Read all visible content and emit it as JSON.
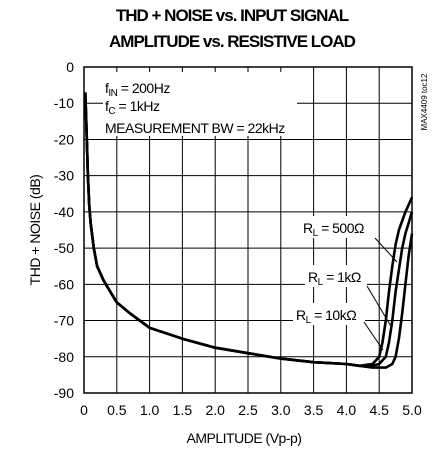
{
  "chart_data": {
    "type": "line",
    "title_lines": [
      "THD + NOISE vs. INPUT SIGNAL",
      "AMPLITUDE vs. RESISTIVE LOAD"
    ],
    "xlabel": "AMPLITUDE (Vp-p)",
    "ylabel": "THD + NOISE (dB)",
    "xlim": [
      0,
      5.0
    ],
    "ylim": [
      -90,
      0
    ],
    "xticks": [
      "0",
      "0.5",
      "1.0",
      "1.5",
      "2.0",
      "2.5",
      "3.0",
      "3.5",
      "4.0",
      "4.5",
      "5.0"
    ],
    "yticks": [
      "0",
      "-10",
      "-20",
      "-30",
      "-40",
      "-50",
      "-60",
      "-70",
      "-80",
      "-90"
    ],
    "grid": true,
    "annotations": {
      "fin": "fIN = 200Hz",
      "fc": "fC = 1kHz",
      "bw": "MEASUREMENT BW = 22kHz"
    },
    "code": "MAX4409 toc12",
    "series": [
      {
        "name": "RL = 500Ω",
        "x": [
          0.02,
          0.04,
          0.06,
          0.08,
          0.1,
          0.15,
          0.2,
          0.3,
          0.4,
          0.5,
          0.7,
          1.0,
          1.5,
          2.0,
          2.5,
          3.0,
          3.5,
          4.0,
          4.2,
          4.4,
          4.5,
          4.55,
          4.6,
          4.65,
          4.7,
          4.75,
          4.8,
          4.9,
          5.0
        ],
        "y": [
          -7,
          -18,
          -30,
          -38,
          -43,
          -50,
          -55,
          -59,
          -62,
          -65,
          -68,
          -72,
          -75,
          -77.5,
          -79,
          -80.5,
          -81.5,
          -82,
          -82.5,
          -82,
          -80,
          -76,
          -70,
          -62,
          -55,
          -49,
          -45,
          -40,
          -36
        ]
      },
      {
        "name": "RL = 1kΩ",
        "x": [
          0.02,
          0.04,
          0.06,
          0.08,
          0.1,
          0.15,
          0.2,
          0.3,
          0.4,
          0.5,
          0.7,
          1.0,
          1.5,
          2.0,
          2.5,
          3.0,
          3.5,
          4.0,
          4.2,
          4.4,
          4.5,
          4.6,
          4.65,
          4.7,
          4.75,
          4.8,
          4.85,
          4.9,
          5.0
        ],
        "y": [
          -7,
          -18,
          -30,
          -38,
          -43,
          -50,
          -55,
          -59,
          -62,
          -65,
          -68,
          -72,
          -75,
          -77.5,
          -79,
          -80.5,
          -81.5,
          -82,
          -82.5,
          -82.5,
          -82,
          -80,
          -76,
          -70,
          -62,
          -56,
          -50,
          -46,
          -40
        ]
      },
      {
        "name": "RL = 10kΩ",
        "x": [
          0.02,
          0.04,
          0.06,
          0.08,
          0.1,
          0.15,
          0.2,
          0.3,
          0.4,
          0.5,
          0.7,
          1.0,
          1.5,
          2.0,
          2.5,
          3.0,
          3.5,
          4.0,
          4.2,
          4.4,
          4.5,
          4.6,
          4.7,
          4.75,
          4.8,
          4.85,
          4.9,
          4.95,
          5.0
        ],
        "y": [
          -7,
          -18,
          -30,
          -38,
          -43,
          -50,
          -55,
          -59,
          -62,
          -65,
          -68,
          -72,
          -75,
          -77.5,
          -79,
          -80.5,
          -81.5,
          -82,
          -82.5,
          -83,
          -83,
          -83,
          -82,
          -80,
          -75,
          -68,
          -60,
          -52,
          -46
        ]
      }
    ]
  }
}
